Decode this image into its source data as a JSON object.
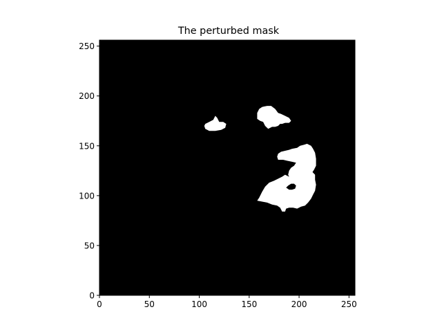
{
  "chart_data": {
    "type": "heatmap",
    "title": "The perturbed mask",
    "xlabel": "",
    "ylabel": "",
    "xlim": [
      0,
      256
    ],
    "ylim": [
      0,
      256
    ],
    "origin": "lower",
    "grid": false,
    "legend": "none",
    "colormap": "gray",
    "background_value": 0,
    "x_ticks": [
      0,
      50,
      100,
      150,
      200,
      250
    ],
    "y_ticks": [
      0,
      50,
      100,
      150,
      200,
      250
    ],
    "x_tick_labels": [
      "0",
      "50",
      "100",
      "150",
      "200",
      "250"
    ],
    "y_tick_labels": [
      "0",
      "50",
      "100",
      "150",
      "200",
      "250"
    ],
    "colors": {
      "background": "#000000",
      "mask": "#ffffff"
    },
    "mask_regions": [
      {
        "name": "left small blob",
        "value": 1,
        "polygon": [
          [
            106,
            172
          ],
          [
            110,
            174
          ],
          [
            114,
            176
          ],
          [
            116,
            180
          ],
          [
            118,
            178
          ],
          [
            120,
            174
          ],
          [
            124,
            174
          ],
          [
            127,
            172
          ],
          [
            126,
            168
          ],
          [
            122,
            166
          ],
          [
            116,
            165
          ],
          [
            110,
            165
          ],
          [
            106,
            167
          ],
          [
            105,
            170
          ]
        ]
      },
      {
        "name": "upper middle blob",
        "value": 1,
        "polygon": [
          [
            158,
            177
          ],
          [
            158,
            183
          ],
          [
            160,
            187
          ],
          [
            163,
            189
          ],
          [
            168,
            190
          ],
          [
            172,
            190
          ],
          [
            176,
            187
          ],
          [
            179,
            183
          ],
          [
            182,
            182
          ],
          [
            186,
            180
          ],
          [
            190,
            178
          ],
          [
            192,
            175
          ],
          [
            190,
            173
          ],
          [
            186,
            173
          ],
          [
            183,
            172
          ],
          [
            181,
            172
          ],
          [
            179,
            170
          ],
          [
            176,
            169
          ],
          [
            173,
            169
          ],
          [
            169,
            167
          ],
          [
            166,
            170
          ],
          [
            164,
            174
          ],
          [
            161,
            175
          ]
        ]
      },
      {
        "name": "right upper blob",
        "value": 1,
        "polygon": [
          [
            179,
            136
          ],
          [
            178,
            139
          ],
          [
            179,
            142
          ],
          [
            182,
            144
          ],
          [
            186,
            145
          ],
          [
            190,
            146
          ],
          [
            193,
            147
          ],
          [
            198,
            148
          ],
          [
            201,
            150
          ],
          [
            205,
            151
          ],
          [
            208,
            152
          ],
          [
            212,
            150
          ],
          [
            214,
            147
          ],
          [
            216,
            143
          ],
          [
            217,
            137
          ],
          [
            217,
            130
          ],
          [
            215,
            126
          ],
          [
            213,
            123
          ],
          [
            210,
            121
          ],
          [
            207,
            117
          ],
          [
            205,
            114
          ],
          [
            202,
            112
          ],
          [
            200,
            110
          ],
          [
            196,
            109
          ],
          [
            195,
            114
          ],
          [
            191,
            117
          ],
          [
            189,
            121
          ],
          [
            190,
            125
          ],
          [
            192,
            128
          ],
          [
            195,
            130
          ],
          [
            197,
            133
          ],
          [
            193,
            134
          ],
          [
            188,
            135
          ],
          [
            184,
            136
          ]
        ]
      },
      {
        "name": "right lower blob",
        "value": 1,
        "polygon": [
          [
            158,
            95
          ],
          [
            160,
            98
          ],
          [
            163,
            104
          ],
          [
            166,
            109
          ],
          [
            170,
            113
          ],
          [
            175,
            115
          ],
          [
            179,
            117
          ],
          [
            183,
            119
          ],
          [
            186,
            121
          ],
          [
            190,
            119
          ],
          [
            194,
            116
          ],
          [
            198,
            118
          ],
          [
            202,
            120
          ],
          [
            205,
            122
          ],
          [
            208,
            124
          ],
          [
            213,
            124
          ],
          [
            216,
            121
          ],
          [
            216,
            116
          ],
          [
            217,
            111
          ],
          [
            216,
            105
          ],
          [
            214,
            101
          ],
          [
            212,
            97
          ],
          [
            209,
            93
          ],
          [
            206,
            90
          ],
          [
            202,
            89
          ],
          [
            198,
            87
          ],
          [
            194,
            88
          ],
          [
            190,
            88
          ],
          [
            187,
            87
          ],
          [
            186,
            84
          ],
          [
            183,
            84
          ],
          [
            181,
            88
          ],
          [
            178,
            90
          ],
          [
            173,
            91
          ],
          [
            168,
            93
          ],
          [
            163,
            94
          ]
        ]
      },
      {
        "name": "interior hole",
        "value": 0,
        "polygon": [
          [
            187,
            108
          ],
          [
            189,
            110
          ],
          [
            192,
            112
          ],
          [
            195,
            112
          ],
          [
            197,
            110
          ],
          [
            196,
            107
          ],
          [
            193,
            106
          ],
          [
            190,
            106
          ]
        ]
      }
    ]
  }
}
